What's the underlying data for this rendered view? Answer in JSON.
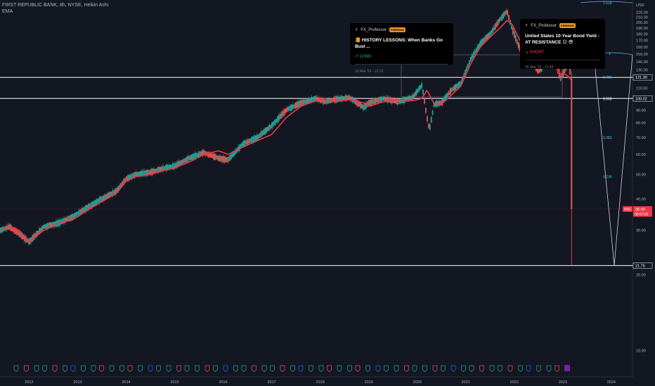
{
  "header": {
    "symbol_line": "FIRST REPUBLIC BANK, 8h, NYSE, Heikin Ashi",
    "indicator": "EMA"
  },
  "price_labels": {
    "currency": "USD",
    "current_price": "36.45",
    "countdown": "05:57:00",
    "ticker_badge": "FRC",
    "line_1_value": "121.30",
    "line_2_value": "100.02",
    "line_3_value": "21.75"
  },
  "fib_labels": {
    "top": "1.618",
    "l1": "1",
    "l786": "0.786",
    "l618": "0.618",
    "l382": "0.382",
    "l236": "0.236"
  },
  "ideas": [
    {
      "author": "FX_Professor",
      "badge": "PREMIUM",
      "title": "📙 HISTORY LESSONS: When Banks Go Bust ...",
      "side": "↗ LONG",
      "side_type": "long",
      "timestamp": "10 Mar '23 - 22:10"
    },
    {
      "author": "FX_Professor",
      "badge": "PREMIUM",
      "title": "United States 10-Year Bond Yield - AT RESISTANCE 😕 😎",
      "side": "↘ SHORT",
      "side_type": "short",
      "timestamp": "06 Mar '23 - 12:49"
    }
  ],
  "colors": {
    "background": "#131722",
    "candle_up": "#26a69a",
    "candle_down": "#ef5350",
    "ema": "#f23645",
    "fib": "#4fc3f7",
    "level_line": "#ffffff"
  },
  "chart_data": {
    "type": "line",
    "title": "FIRST REPUBLIC BANK, 8h, NYSE, Heikin Ashi",
    "ylabel": "USD",
    "yscale": "log",
    "ylim": [
      8.5,
      235
    ],
    "xlim": [
      2011.4,
      2024.9
    ],
    "x_tick_labels": [
      "2012",
      "2013",
      "2014",
      "2015",
      "2016",
      "2017",
      "2018",
      "2019",
      "2020",
      "2021",
      "2022",
      "2023",
      "2024"
    ],
    "y_tick_labels": [
      "10.00",
      "20.00",
      "30.00",
      "40.00",
      "50.00",
      "60.00",
      "70.00",
      "80.00",
      "90.00",
      "100.00",
      "110.00",
      "120.00",
      "130.00",
      "140.00",
      "150.00",
      "160.00",
      "170.00",
      "180.00",
      "190.00",
      "200.00",
      "210.00",
      "220.00"
    ],
    "series": [
      {
        "name": "EMA",
        "x": [
          2011.4,
          2011.6,
          2011.8,
          2012.0,
          2012.3,
          2012.6,
          2012.9,
          2013.2,
          2013.5,
          2013.8,
          2014.0,
          2014.2,
          2014.5,
          2014.8,
          2015.0,
          2015.3,
          2015.6,
          2015.9,
          2016.1,
          2016.4,
          2016.7,
          2017.0,
          2017.3,
          2017.6,
          2017.9,
          2018.1,
          2018.3,
          2018.6,
          2018.9,
          2019.0,
          2019.3,
          2019.6,
          2019.9,
          2020.1,
          2020.2,
          2020.35,
          2020.5,
          2020.7,
          2020.9,
          2021.1,
          2021.3,
          2021.5,
          2021.7,
          2021.85,
          2021.95,
          2022.1,
          2022.3,
          2022.5,
          2022.6,
          2022.75,
          2022.85,
          2022.95,
          2023.05,
          2023.12,
          2023.18
        ],
        "values": [
          30,
          31,
          30,
          27,
          30,
          32,
          33,
          36,
          39,
          42,
          47,
          49,
          50,
          52,
          53,
          56,
          60,
          62,
          60,
          64,
          68,
          72,
          84,
          93,
          98,
          100,
          97,
          99,
          96,
          93,
          97,
          99,
          98,
          100,
          108,
          95,
          95,
          103,
          112,
          137,
          160,
          175,
          190,
          204,
          198,
          172,
          150,
          136,
          133,
          143,
          150,
          124,
          125,
          122,
          118
        ]
      },
      {
        "name": "Heikin Ashi close",
        "x": [
          2011.4,
          2011.6,
          2011.8,
          2012.0,
          2012.3,
          2012.6,
          2012.9,
          2013.2,
          2013.5,
          2013.8,
          2014.0,
          2014.2,
          2014.5,
          2014.8,
          2015.0,
          2015.3,
          2015.6,
          2015.9,
          2016.1,
          2016.4,
          2016.7,
          2017.0,
          2017.3,
          2017.6,
          2017.9,
          2018.1,
          2018.3,
          2018.6,
          2018.9,
          2019.0,
          2019.3,
          2019.6,
          2019.9,
          2020.1,
          2020.2,
          2020.25,
          2020.35,
          2020.5,
          2020.7,
          2020.9,
          2021.1,
          2021.3,
          2021.5,
          2021.7,
          2021.85,
          2021.95,
          2022.1,
          2022.3,
          2022.5,
          2022.6,
          2022.75,
          2022.85,
          2022.95,
          2023.05,
          2023.12,
          2023.16,
          2023.18
        ],
        "values": [
          30,
          31,
          29,
          27,
          31,
          32,
          34,
          37,
          40,
          43,
          48,
          50,
          51,
          53,
          54,
          58,
          61,
          58,
          57,
          66,
          70,
          78,
          90,
          96,
          100,
          97,
          99,
          101,
          92,
          96,
          100,
          97,
          101,
          113,
          84,
          75,
          95,
          96,
          108,
          115,
          143,
          165,
          180,
          205,
          222,
          190,
          160,
          145,
          128,
          134,
          155,
          137,
          120,
          130,
          140,
          124,
          36
        ]
      }
    ],
    "level_lines": [
      121.3,
      100.02,
      21.75
    ],
    "fib_levels": [
      {
        "label": "1.618",
        "value": 235
      },
      {
        "label": "1",
        "value": 149
      },
      {
        "label": "0.786",
        "value": 121.3
      },
      {
        "label": "0.618",
        "value": 100.02
      },
      {
        "label": "0.382",
        "value": 70
      },
      {
        "label": "0.236",
        "value": 49
      }
    ]
  }
}
